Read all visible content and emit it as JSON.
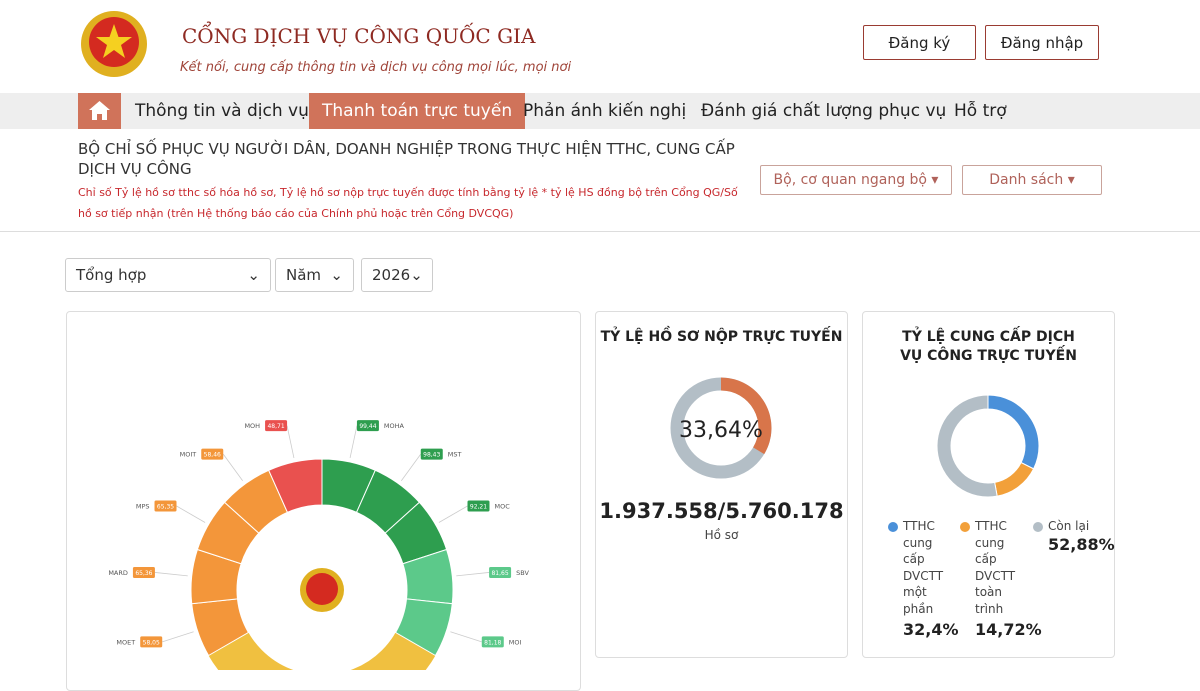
{
  "header": {
    "title": "CỔNG DỊCH VỤ CÔNG QUỐC GIA",
    "slogan": "Kết nối, cung cấp thông tin và dịch vụ công mọi lúc, mọi nơi",
    "buttons": [
      "Đăng ký",
      "Đăng nhập"
    ]
  },
  "nav": {
    "items": [
      "Thông tin và dịch vụ",
      "Thanh toán trực tuyến",
      "Phản ánh kiến nghị",
      "Đánh giá chất lượng phục vụ",
      "Hỗ trợ"
    ],
    "active": 1
  },
  "section": {
    "title": "BỘ CHỈ SỐ PHỤC VỤ NGƯỜI DÂN, DOANH NGHIỆP TRONG THỰC HIỆN TTHC, CUNG CẤP DỊCH VỤ CÔNG",
    "note": "Chỉ số Tỷ lệ hồ sơ tthc số hóa hồ sơ, Tỷ lệ hồ sơ nộp trực tuyến được tính bằng tỷ lệ * tỷ lệ HS đồng bộ trên Cổng QG/Số hồ sơ tiếp nhận (trên Hệ thống báo cáo của Chính phủ hoặc trên Cổng DVCQG)",
    "dropdowns": [
      "Bộ, cơ quan ngang bộ",
      "Danh sách"
    ]
  },
  "filters": [
    "Tổng hợp",
    "Năm",
    "2026"
  ],
  "radial_chart": {
    "type": "radial-bar",
    "categories": [
      "MOET",
      "MARD",
      "MPS",
      "MOIT",
      "MOH",
      "MOHA",
      "MST",
      "MOC",
      "SBV",
      "MOI"
    ],
    "values": [
      58.05,
      65.36,
      65.35,
      58.46,
      48.71,
      99.44,
      98.43,
      92.21,
      81.65,
      81.18
    ],
    "value_labels": [
      "58,05",
      "65,36",
      "65,35",
      "58,46",
      "48,71",
      "99,44",
      "98,43",
      "92,21",
      "81,65",
      "81,18"
    ],
    "colors": [
      "#f3963a",
      "#f3963a",
      "#f3963a",
      "#f3963a",
      "#e9514f",
      "#2e9e4f",
      "#2e9e4f",
      "#2e9e4f",
      "#5cc98a",
      "#5cc98a"
    ]
  },
  "online_rate": {
    "type": "donut",
    "title": "TỶ LỆ HỒ SƠ NỘP TRỰC TUYẾN",
    "values": [
      33.64
    ],
    "value_labels": [
      "33,64%"
    ],
    "color": "#d8754a",
    "rest_color": "#b3bec6",
    "total": "1.937.558/5.760.178",
    "unit": "Hồ sơ"
  },
  "service_rate": {
    "type": "donut",
    "title": "TỶ LỆ CUNG CẤP DỊCH VỤ CÔNG TRỰC TUYẾN",
    "series": [
      {
        "name": "TTHC cung cấp DVCTT một phần",
        "color": "#4a90d9",
        "values": [
          32.4
        ],
        "value_labels": [
          "32,4%"
        ]
      },
      {
        "name": "TTHC cung cấp DVCTT toàn trình",
        "color": "#f2a03a",
        "values": [
          14.72
        ],
        "value_labels": [
          "14,72%"
        ]
      },
      {
        "name": "Còn lại",
        "color": "#b3bec6",
        "values": [
          52.88
        ],
        "value_labels": [
          "52,88%"
        ]
      }
    ]
  }
}
